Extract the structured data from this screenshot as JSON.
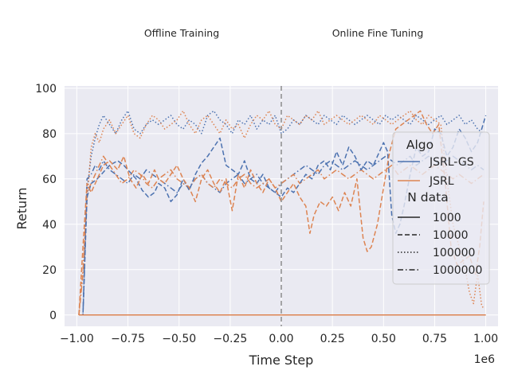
{
  "chart_data": {
    "type": "line",
    "title": "",
    "phase_labels": [
      "Offline Training",
      "Online Fine Tuning"
    ],
    "xlabel": "Time Step",
    "ylabel": "Return",
    "x_offset_label": "1e6",
    "xlim": [
      -1.06,
      1.06
    ],
    "ylim": [
      -5,
      101
    ],
    "x_ticks": [
      -1.0,
      -0.75,
      -0.5,
      -0.25,
      0.0,
      0.25,
      0.5,
      0.75,
      1.0
    ],
    "x_tick_labels": [
      "−1.00",
      "−0.75",
      "−0.50",
      "−0.25",
      "0.00",
      "0.25",
      "0.50",
      "0.75",
      "1.00"
    ],
    "y_ticks": [
      0,
      20,
      40,
      60,
      80,
      100
    ],
    "y_tick_labels": [
      "0",
      "20",
      "40",
      "60",
      "80",
      "100"
    ],
    "vline_x": 0.0,
    "background": "#eaeaf2",
    "grid": true,
    "legend": {
      "placement": "right",
      "algo_title": "Algo",
      "algo_entries": [
        {
          "name": "JSRL-GS",
          "color": "#4c72b0"
        },
        {
          "name": "JSRL",
          "color": "#dd8452"
        }
      ],
      "ndata_title": "N data",
      "ndata_entries": [
        {
          "name": "1000",
          "dash": "solid"
        },
        {
          "name": "10000",
          "dash": "dashed"
        },
        {
          "name": "100000",
          "dash": "dotted"
        },
        {
          "name": "1000000",
          "dash": "dashdot"
        }
      ]
    },
    "series": [
      {
        "name": "JSRL-GS",
        "n_data": "1000",
        "color": "#4c72b0",
        "dash": "solid",
        "x": [
          -0.99,
          1.0
        ],
        "y": [
          0,
          0
        ]
      },
      {
        "name": "JSRL",
        "n_data": "1000",
        "color": "#dd8452",
        "dash": "solid",
        "x": [
          -0.99,
          1.0
        ],
        "y": [
          0,
          0
        ]
      },
      {
        "name": "JSRL-GS",
        "n_data": "10000",
        "color": "#4c72b0",
        "dash": "dashed",
        "x": [
          -0.99,
          -0.97,
          -0.95,
          -0.93,
          -0.9,
          -0.87,
          -0.84,
          -0.8,
          -0.77,
          -0.74,
          -0.71,
          -0.68,
          -0.65,
          -0.62,
          -0.6,
          -0.57,
          -0.54,
          -0.51,
          -0.48,
          -0.45,
          -0.42,
          -0.39,
          -0.36,
          -0.33,
          -0.3,
          -0.27,
          -0.24,
          -0.21,
          -0.18,
          -0.15,
          -0.12,
          -0.09,
          -0.06,
          -0.03,
          0.0,
          0.03,
          0.06,
          0.09,
          0.12,
          0.15,
          0.18,
          0.21,
          0.24,
          0.27,
          0.3,
          0.33,
          0.36,
          0.39,
          0.42,
          0.45,
          0.48,
          0.5,
          0.52,
          0.54,
          0.56,
          0.58,
          0.6,
          0.63,
          0.66,
          0.69,
          0.72,
          0.75,
          0.78,
          0.81,
          0.84,
          0.87,
          0.9,
          0.93,
          0.96,
          0.98,
          1.0
        ],
        "y": [
          0,
          0,
          52,
          58,
          60,
          63,
          66,
          68,
          66,
          63,
          60,
          55,
          52,
          54,
          58,
          56,
          50,
          53,
          60,
          55,
          62,
          67,
          70,
          74,
          78,
          66,
          64,
          62,
          68,
          60,
          58,
          62,
          56,
          54,
          52,
          56,
          54,
          58,
          62,
          60,
          66,
          68,
          64,
          72,
          66,
          74,
          70,
          64,
          68,
          66,
          72,
          76,
          72,
          44,
          36,
          40,
          48,
          62,
          74,
          70,
          72,
          82,
          80,
          70,
          74,
          82,
          78,
          72,
          76,
          82,
          88
        ]
      },
      {
        "name": "JSRL",
        "n_data": "10000",
        "color": "#dd8452",
        "dash": "dashed",
        "x": [
          -0.99,
          -0.97,
          -0.95,
          -0.93,
          -0.9,
          -0.87,
          -0.84,
          -0.8,
          -0.77,
          -0.74,
          -0.71,
          -0.68,
          -0.65,
          -0.62,
          -0.6,
          -0.57,
          -0.54,
          -0.51,
          -0.48,
          -0.45,
          -0.42,
          -0.39,
          -0.36,
          -0.33,
          -0.3,
          -0.27,
          -0.24,
          -0.21,
          -0.18,
          -0.15,
          -0.12,
          -0.09,
          -0.06,
          -0.03,
          0.0,
          0.03,
          0.06,
          0.09,
          0.12,
          0.14,
          0.16,
          0.19,
          0.22,
          0.25,
          0.28,
          0.31,
          0.34,
          0.37,
          0.4,
          0.42,
          0.44,
          0.47,
          0.5,
          0.53,
          0.56,
          0.59,
          0.62,
          0.65,
          0.68,
          0.71,
          0.74,
          0.77,
          0.8,
          0.83,
          0.86,
          0.89,
          0.92,
          0.95,
          0.97,
          0.99
        ],
        "y": [
          0,
          30,
          58,
          54,
          60,
          66,
          68,
          64,
          70,
          60,
          56,
          62,
          58,
          64,
          60,
          58,
          62,
          66,
          60,
          56,
          50,
          60,
          64,
          58,
          54,
          60,
          46,
          62,
          56,
          64,
          58,
          54,
          60,
          56,
          50,
          54,
          58,
          52,
          48,
          36,
          44,
          50,
          48,
          52,
          46,
          54,
          48,
          60,
          34,
          28,
          30,
          40,
          56,
          72,
          82,
          84,
          86,
          88,
          90,
          84,
          80,
          84,
          60,
          30,
          22,
          24,
          26,
          18,
          30,
          50
        ]
      },
      {
        "name": "JSRL-GS",
        "n_data": "100000",
        "color": "#4c72b0",
        "dash": "dotted",
        "x": [
          -0.99,
          -0.97,
          -0.95,
          -0.93,
          -0.91,
          -0.89,
          -0.87,
          -0.84,
          -0.81,
          -0.78,
          -0.75,
          -0.72,
          -0.69,
          -0.66,
          -0.63,
          -0.6,
          -0.57,
          -0.54,
          -0.51,
          -0.48,
          -0.45,
          -0.42,
          -0.39,
          -0.36,
          -0.33,
          -0.3,
          -0.27,
          -0.24,
          -0.21,
          -0.18,
          -0.15,
          -0.12,
          -0.09,
          -0.06,
          -0.03,
          0.0,
          0.03,
          0.06,
          0.09,
          0.12,
          0.15,
          0.18,
          0.21,
          0.24,
          0.27,
          0.3,
          0.33,
          0.36,
          0.39,
          0.42,
          0.45,
          0.48,
          0.51,
          0.54,
          0.57,
          0.6,
          0.63,
          0.66,
          0.69,
          0.72,
          0.75,
          0.78,
          0.81,
          0.84,
          0.87,
          0.9,
          0.93,
          0.96,
          0.99
        ],
        "y": [
          0,
          0,
          55,
          70,
          78,
          84,
          88,
          84,
          80,
          86,
          90,
          82,
          80,
          84,
          86,
          84,
          86,
          88,
          84,
          82,
          86,
          84,
          80,
          88,
          90,
          86,
          84,
          80,
          86,
          84,
          88,
          82,
          86,
          84,
          88,
          80,
          82,
          86,
          84,
          88,
          86,
          84,
          88,
          86,
          84,
          88,
          86,
          84,
          86,
          88,
          86,
          84,
          88,
          86,
          88,
          86,
          84,
          88,
          86,
          84,
          86,
          88,
          84,
          86,
          88,
          84,
          86,
          82,
          80
        ]
      },
      {
        "name": "JSRL",
        "n_data": "100000",
        "color": "#dd8452",
        "dash": "dotted",
        "x": [
          -0.99,
          -0.97,
          -0.95,
          -0.93,
          -0.91,
          -0.89,
          -0.87,
          -0.84,
          -0.81,
          -0.78,
          -0.75,
          -0.72,
          -0.69,
          -0.66,
          -0.63,
          -0.6,
          -0.57,
          -0.54,
          -0.51,
          -0.48,
          -0.45,
          -0.42,
          -0.39,
          -0.36,
          -0.33,
          -0.3,
          -0.27,
          -0.24,
          -0.21,
          -0.18,
          -0.15,
          -0.12,
          -0.09,
          -0.06,
          -0.03,
          0.0,
          0.03,
          0.06,
          0.09,
          0.12,
          0.15,
          0.18,
          0.21,
          0.24,
          0.27,
          0.3,
          0.33,
          0.36,
          0.39,
          0.42,
          0.45,
          0.48,
          0.51,
          0.54,
          0.57,
          0.6,
          0.63,
          0.66,
          0.69,
          0.72,
          0.75,
          0.78,
          0.81,
          0.84,
          0.87,
          0.9,
          0.92,
          0.94,
          0.96,
          0.98,
          0.99
        ],
        "y": [
          0,
          20,
          50,
          74,
          80,
          76,
          82,
          86,
          80,
          84,
          88,
          80,
          78,
          84,
          88,
          86,
          82,
          84,
          86,
          90,
          84,
          80,
          86,
          88,
          84,
          80,
          86,
          82,
          84,
          78,
          84,
          88,
          86,
          90,
          84,
          82,
          88,
          86,
          84,
          88,
          86,
          90,
          84,
          86,
          88,
          86,
          84,
          86,
          88,
          86,
          84,
          88,
          86,
          84,
          86,
          88,
          90,
          86,
          84,
          88,
          86,
          84,
          60,
          40,
          30,
          20,
          10,
          5,
          18,
          4,
          3
        ]
      },
      {
        "name": "JSRL-GS",
        "n_data": "1000000",
        "color": "#4c72b0",
        "dash": "dashdot",
        "x": [
          -0.99,
          -0.97,
          -0.95,
          -0.93,
          -0.91,
          -0.89,
          -0.87,
          -0.84,
          -0.81,
          -0.78,
          -0.75,
          -0.72,
          -0.69,
          -0.66,
          -0.63,
          -0.6,
          -0.57,
          -0.54,
          -0.51,
          -0.48,
          -0.45,
          -0.42,
          -0.39,
          -0.36,
          -0.33,
          -0.3,
          -0.27,
          -0.24,
          -0.21,
          -0.18,
          -0.15,
          -0.12,
          -0.09,
          -0.06,
          -0.03,
          0.0,
          0.03,
          0.06,
          0.09,
          0.12,
          0.15,
          0.18,
          0.21,
          0.24,
          0.27,
          0.3,
          0.33,
          0.36,
          0.39,
          0.42,
          0.45,
          0.48,
          0.51,
          0.54,
          0.57,
          0.6,
          0.63,
          0.66,
          0.69,
          0.72,
          0.75,
          0.78,
          0.81,
          0.84,
          0.87,
          0.9,
          0.93,
          0.96,
          0.99
        ],
        "y": [
          0,
          0,
          60,
          62,
          66,
          64,
          68,
          64,
          62,
          60,
          58,
          62,
          60,
          64,
          62,
          60,
          58,
          56,
          54,
          58,
          56,
          60,
          62,
          58,
          56,
          54,
          58,
          60,
          62,
          58,
          60,
          62,
          58,
          56,
          54,
          58,
          60,
          62,
          64,
          66,
          64,
          62,
          66,
          68,
          66,
          64,
          66,
          68,
          66,
          64,
          66,
          68,
          70,
          68,
          66,
          68,
          70,
          66,
          68,
          70,
          68,
          66,
          68,
          70,
          68,
          66,
          64,
          66,
          64
        ]
      },
      {
        "name": "JSRL",
        "n_data": "1000000",
        "color": "#dd8452",
        "dash": "dashdot",
        "x": [
          -0.99,
          -0.97,
          -0.95,
          -0.93,
          -0.91,
          -0.89,
          -0.87,
          -0.84,
          -0.81,
          -0.78,
          -0.75,
          -0.72,
          -0.69,
          -0.66,
          -0.63,
          -0.6,
          -0.57,
          -0.54,
          -0.51,
          -0.48,
          -0.45,
          -0.42,
          -0.39,
          -0.36,
          -0.33,
          -0.3,
          -0.27,
          -0.24,
          -0.21,
          -0.18,
          -0.15,
          -0.12,
          -0.09,
          -0.06,
          -0.03,
          0.0,
          0.03,
          0.06,
          0.09,
          0.12,
          0.15,
          0.18,
          0.21,
          0.24,
          0.27,
          0.3,
          0.33,
          0.36,
          0.39,
          0.42,
          0.45,
          0.48,
          0.51,
          0.54,
          0.57,
          0.6,
          0.63,
          0.66,
          0.69,
          0.72,
          0.75,
          0.78,
          0.81,
          0.84,
          0.87,
          0.9,
          0.93,
          0.96,
          0.99
        ],
        "y": [
          0,
          18,
          54,
          58,
          62,
          66,
          70,
          66,
          62,
          58,
          60,
          64,
          62,
          58,
          56,
          60,
          62,
          64,
          60,
          58,
          56,
          60,
          62,
          58,
          56,
          60,
          58,
          56,
          60,
          62,
          58,
          56,
          58,
          60,
          56,
          58,
          60,
          62,
          58,
          60,
          62,
          64,
          60,
          62,
          64,
          62,
          60,
          62,
          64,
          62,
          60,
          62,
          64,
          66,
          62,
          64,
          66,
          64,
          62,
          64,
          66,
          64,
          62,
          60,
          62,
          60,
          58,
          60,
          62
        ]
      }
    ]
  }
}
